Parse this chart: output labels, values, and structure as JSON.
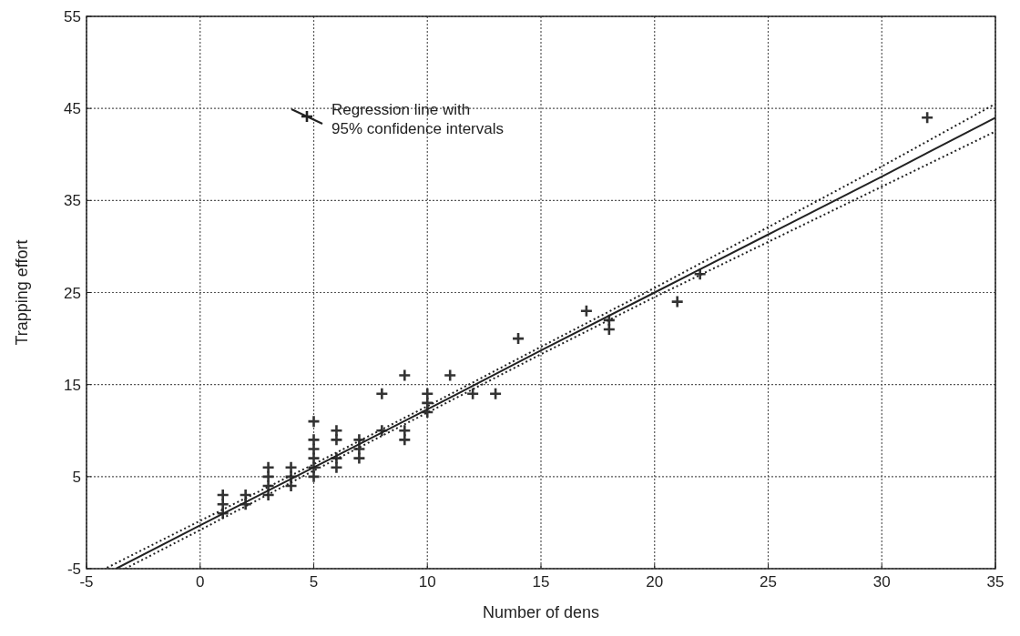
{
  "chart_data": {
    "type": "scatter",
    "xlabel": "Number of dens",
    "ylabel": "Trapping effort",
    "xlim": [
      -5,
      35
    ],
    "xticks": [
      -5,
      0,
      5,
      10,
      15,
      20,
      25,
      30,
      35
    ],
    "ylim": [
      -5,
      55
    ],
    "yticks": [
      -5,
      5,
      15,
      25,
      35,
      45,
      55
    ],
    "grid": true,
    "legend": "top left",
    "marker": "cross",
    "series": [
      {
        "color": "#333333",
        "x": [
          1,
          1,
          1,
          2,
          2,
          3,
          3,
          3,
          3,
          4,
          4,
          4,
          5,
          5,
          5,
          5,
          5,
          5,
          6,
          6,
          6,
          6,
          7,
          7,
          7,
          8,
          8,
          9,
          9,
          9,
          10,
          10,
          10,
          11,
          12,
          13,
          14,
          17,
          18,
          18,
          21,
          22,
          32
        ],
        "values": [
          1,
          2,
          3,
          2,
          3,
          3,
          4,
          5,
          6,
          4,
          5,
          6,
          5,
          6,
          7,
          8,
          9,
          11,
          6,
          7,
          9,
          10,
          7,
          8,
          9,
          10,
          14,
          9,
          10,
          16,
          12,
          13,
          14,
          16,
          14,
          14,
          20,
          23,
          21,
          22,
          24,
          27,
          44
        ]
      },
      {
        "type": "line",
        "name": "Regression line with\n95% confidence intervals",
        "color": "#222222",
        "line_style": "solid",
        "marker": "none",
        "x": [
          -3.7,
          0,
          5,
          10,
          15,
          20,
          25,
          30,
          35
        ],
        "values": [
          -5,
          -0.3,
          6.0,
          12.3,
          18.7,
          25.0,
          31.3,
          37.6,
          44.0
        ]
      },
      {
        "type": "line",
        "color": "#222222",
        "line_style": "dotted",
        "marker": "none",
        "x": [
          -3.3,
          0,
          5,
          10,
          15,
          20,
          25,
          30,
          35
        ],
        "values": [
          -5,
          -0.8,
          5.65,
          11.95,
          18.3,
          24.5,
          30.5,
          36.5,
          42.5
        ]
      },
      {
        "type": "line",
        "color": "#222222",
        "line_style": "dotted",
        "marker": "none",
        "x": [
          -4.1,
          0,
          5,
          10,
          15,
          20,
          25,
          30,
          35
        ],
        "values": [
          -4.9,
          0.2,
          6.35,
          12.65,
          19.1,
          25.5,
          32.1,
          38.7,
          45.5
        ]
      }
    ]
  }
}
